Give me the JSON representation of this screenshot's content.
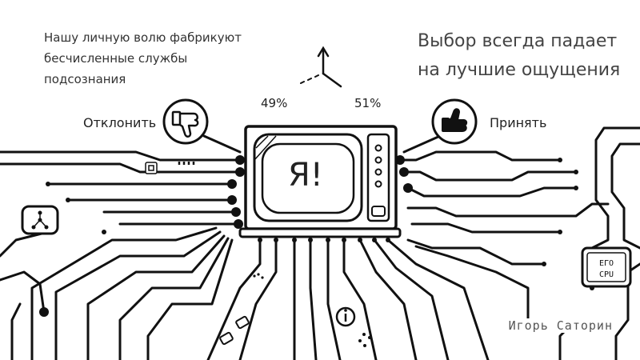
{
  "quote_left": {
    "line1": "Нашу личную волю фабрикуют",
    "line2": "бесчисленные службы",
    "line3": "подсознания"
  },
  "quote_right": {
    "line1": "Выбор всегда падает",
    "line2": "на лучшие ощущения"
  },
  "gauge": {
    "left_percent": "49%",
    "right_percent": "51%"
  },
  "reject": {
    "label": "Отклонить",
    "icon": "thumbs-down-icon"
  },
  "accept": {
    "label": "Принять",
    "icon": "thumbs-up-icon"
  },
  "tv": {
    "screen_text": "Я!"
  },
  "chip": {
    "line1": "ЕГО",
    "line2": "CPU"
  },
  "author": "Игорь Саторин",
  "colors": {
    "ink": "#1a1a1a",
    "paper": "#ffffff"
  }
}
